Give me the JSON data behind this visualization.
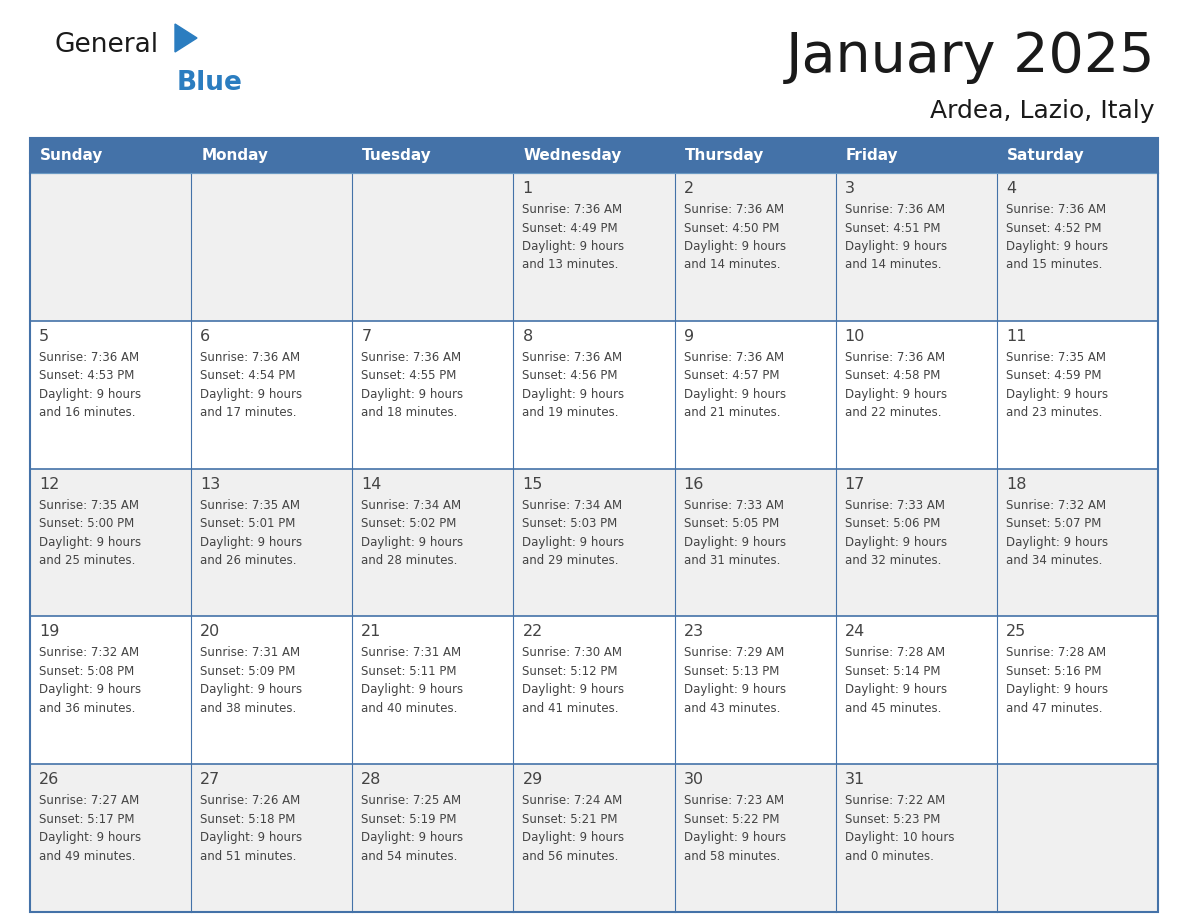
{
  "title": "January 2025",
  "subtitle": "Ardea, Lazio, Italy",
  "days_of_week": [
    "Sunday",
    "Monday",
    "Tuesday",
    "Wednesday",
    "Thursday",
    "Friday",
    "Saturday"
  ],
  "header_bg": "#4472A8",
  "header_text": "#FFFFFF",
  "cell_bg_odd": "#F0F0F0",
  "cell_bg_even": "#FFFFFF",
  "cell_border": "#4472A8",
  "text_color": "#444444",
  "title_color": "#1a1a1a",
  "logo_general_color": "#1a1a1a",
  "logo_blue_color": "#2B7DC0",
  "logo_triangle_color": "#2B7DC0",
  "calendar_data": [
    [
      null,
      null,
      null,
      {
        "day": 1,
        "sunrise": "7:36 AM",
        "sunset": "4:49 PM",
        "daylight": "9 hours and 13 minutes."
      },
      {
        "day": 2,
        "sunrise": "7:36 AM",
        "sunset": "4:50 PM",
        "daylight": "9 hours and 14 minutes."
      },
      {
        "day": 3,
        "sunrise": "7:36 AM",
        "sunset": "4:51 PM",
        "daylight": "9 hours and 14 minutes."
      },
      {
        "day": 4,
        "sunrise": "7:36 AM",
        "sunset": "4:52 PM",
        "daylight": "9 hours and 15 minutes."
      }
    ],
    [
      {
        "day": 5,
        "sunrise": "7:36 AM",
        "sunset": "4:53 PM",
        "daylight": "9 hours and 16 minutes."
      },
      {
        "day": 6,
        "sunrise": "7:36 AM",
        "sunset": "4:54 PM",
        "daylight": "9 hours and 17 minutes."
      },
      {
        "day": 7,
        "sunrise": "7:36 AM",
        "sunset": "4:55 PM",
        "daylight": "9 hours and 18 minutes."
      },
      {
        "day": 8,
        "sunrise": "7:36 AM",
        "sunset": "4:56 PM",
        "daylight": "9 hours and 19 minutes."
      },
      {
        "day": 9,
        "sunrise": "7:36 AM",
        "sunset": "4:57 PM",
        "daylight": "9 hours and 21 minutes."
      },
      {
        "day": 10,
        "sunrise": "7:36 AM",
        "sunset": "4:58 PM",
        "daylight": "9 hours and 22 minutes."
      },
      {
        "day": 11,
        "sunrise": "7:35 AM",
        "sunset": "4:59 PM",
        "daylight": "9 hours and 23 minutes."
      }
    ],
    [
      {
        "day": 12,
        "sunrise": "7:35 AM",
        "sunset": "5:00 PM",
        "daylight": "9 hours and 25 minutes."
      },
      {
        "day": 13,
        "sunrise": "7:35 AM",
        "sunset": "5:01 PM",
        "daylight": "9 hours and 26 minutes."
      },
      {
        "day": 14,
        "sunrise": "7:34 AM",
        "sunset": "5:02 PM",
        "daylight": "9 hours and 28 minutes."
      },
      {
        "day": 15,
        "sunrise": "7:34 AM",
        "sunset": "5:03 PM",
        "daylight": "9 hours and 29 minutes."
      },
      {
        "day": 16,
        "sunrise": "7:33 AM",
        "sunset": "5:05 PM",
        "daylight": "9 hours and 31 minutes."
      },
      {
        "day": 17,
        "sunrise": "7:33 AM",
        "sunset": "5:06 PM",
        "daylight": "9 hours and 32 minutes."
      },
      {
        "day": 18,
        "sunrise": "7:32 AM",
        "sunset": "5:07 PM",
        "daylight": "9 hours and 34 minutes."
      }
    ],
    [
      {
        "day": 19,
        "sunrise": "7:32 AM",
        "sunset": "5:08 PM",
        "daylight": "9 hours and 36 minutes."
      },
      {
        "day": 20,
        "sunrise": "7:31 AM",
        "sunset": "5:09 PM",
        "daylight": "9 hours and 38 minutes."
      },
      {
        "day": 21,
        "sunrise": "7:31 AM",
        "sunset": "5:11 PM",
        "daylight": "9 hours and 40 minutes."
      },
      {
        "day": 22,
        "sunrise": "7:30 AM",
        "sunset": "5:12 PM",
        "daylight": "9 hours and 41 minutes."
      },
      {
        "day": 23,
        "sunrise": "7:29 AM",
        "sunset": "5:13 PM",
        "daylight": "9 hours and 43 minutes."
      },
      {
        "day": 24,
        "sunrise": "7:28 AM",
        "sunset": "5:14 PM",
        "daylight": "9 hours and 45 minutes."
      },
      {
        "day": 25,
        "sunrise": "7:28 AM",
        "sunset": "5:16 PM",
        "daylight": "9 hours and 47 minutes."
      }
    ],
    [
      {
        "day": 26,
        "sunrise": "7:27 AM",
        "sunset": "5:17 PM",
        "daylight": "9 hours and 49 minutes."
      },
      {
        "day": 27,
        "sunrise": "7:26 AM",
        "sunset": "5:18 PM",
        "daylight": "9 hours and 51 minutes."
      },
      {
        "day": 28,
        "sunrise": "7:25 AM",
        "sunset": "5:19 PM",
        "daylight": "9 hours and 54 minutes."
      },
      {
        "day": 29,
        "sunrise": "7:24 AM",
        "sunset": "5:21 PM",
        "daylight": "9 hours and 56 minutes."
      },
      {
        "day": 30,
        "sunrise": "7:23 AM",
        "sunset": "5:22 PM",
        "daylight": "9 hours and 58 minutes."
      },
      {
        "day": 31,
        "sunrise": "7:22 AM",
        "sunset": "5:23 PM",
        "daylight": "10 hours and 0 minutes."
      },
      null
    ]
  ]
}
